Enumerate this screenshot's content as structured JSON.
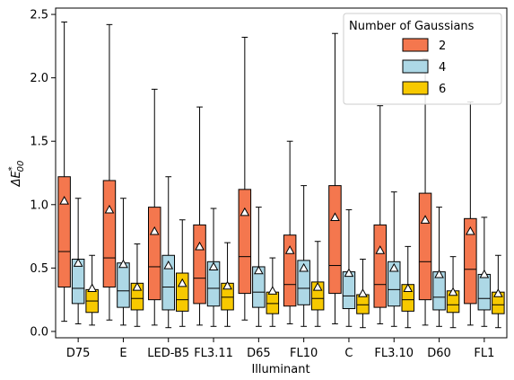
{
  "chart_data": {
    "type": "box",
    "xlabel": "Illuminant",
    "ylabel": "ΔE*00",
    "ylim": [
      -0.05,
      2.55
    ],
    "yticks": [
      0.0,
      0.5,
      1.0,
      1.5,
      2.0,
      2.5
    ],
    "ytick_labels": [
      "0.0",
      "0.5",
      "1.0",
      "1.5",
      "2.0",
      "2.5"
    ],
    "grid": false,
    "categories": [
      "D75",
      "E",
      "LED-B5",
      "FL3.11",
      "D65",
      "FL10",
      "C",
      "FL3.10",
      "D60",
      "FL1"
    ],
    "legend": {
      "title": "Number of Gaussians",
      "placement": "top-right"
    },
    "series": [
      {
        "name": "2",
        "color": "#f4774e",
        "boxes": [
          {
            "whislo": 0.08,
            "q1": 0.35,
            "med": 0.63,
            "q3": 1.22,
            "whishi": 2.44,
            "mean": 1.03
          },
          {
            "whislo": 0.09,
            "q1": 0.35,
            "med": 0.58,
            "q3": 1.19,
            "whishi": 2.42,
            "mean": 0.96
          },
          {
            "whislo": 0.05,
            "q1": 0.25,
            "med": 0.51,
            "q3": 0.98,
            "whishi": 1.91,
            "mean": 0.79
          },
          {
            "whislo": 0.05,
            "q1": 0.22,
            "med": 0.42,
            "q3": 0.84,
            "whishi": 1.77,
            "mean": 0.67
          },
          {
            "whislo": 0.09,
            "q1": 0.3,
            "med": 0.59,
            "q3": 1.12,
            "whishi": 2.32,
            "mean": 0.94
          },
          {
            "whislo": 0.06,
            "q1": 0.2,
            "med": 0.37,
            "q3": 0.76,
            "whishi": 1.5,
            "mean": 0.64
          },
          {
            "whislo": 0.06,
            "q1": 0.3,
            "med": 0.52,
            "q3": 1.15,
            "whishi": 2.35,
            "mean": 0.9
          },
          {
            "whislo": 0.06,
            "q1": 0.19,
            "med": 0.37,
            "q3": 0.84,
            "whishi": 1.78,
            "mean": 0.64
          },
          {
            "whislo": 0.05,
            "q1": 0.25,
            "med": 0.55,
            "q3": 1.09,
            "whishi": 2.15,
            "mean": 0.88
          },
          {
            "whislo": 0.05,
            "q1": 0.22,
            "med": 0.49,
            "q3": 0.89,
            "whishi": 1.81,
            "mean": 0.79
          }
        ]
      },
      {
        "name": "4",
        "color": "#add8e6",
        "boxes": [
          {
            "whislo": 0.06,
            "q1": 0.22,
            "med": 0.34,
            "q3": 0.57,
            "whishi": 1.05,
            "mean": 0.54
          },
          {
            "whislo": 0.05,
            "q1": 0.19,
            "med": 0.32,
            "q3": 0.54,
            "whishi": 1.05,
            "mean": 0.53
          },
          {
            "whislo": 0.03,
            "q1": 0.17,
            "med": 0.35,
            "q3": 0.6,
            "whishi": 1.22,
            "mean": 0.52
          },
          {
            "whislo": 0.04,
            "q1": 0.2,
            "med": 0.34,
            "q3": 0.55,
            "whishi": 0.97,
            "mean": 0.51
          },
          {
            "whislo": 0.04,
            "q1": 0.19,
            "med": 0.31,
            "q3": 0.51,
            "whishi": 0.98,
            "mean": 0.48
          },
          {
            "whislo": 0.04,
            "q1": 0.21,
            "med": 0.34,
            "q3": 0.56,
            "whishi": 1.15,
            "mean": 0.5
          },
          {
            "whislo": 0.04,
            "q1": 0.18,
            "med": 0.28,
            "q3": 0.47,
            "whishi": 0.96,
            "mean": 0.46
          },
          {
            "whislo": 0.04,
            "q1": 0.2,
            "med": 0.33,
            "q3": 0.55,
            "whishi": 1.1,
            "mean": 0.5
          },
          {
            "whislo": 0.04,
            "q1": 0.17,
            "med": 0.27,
            "q3": 0.47,
            "whishi": 0.98,
            "mean": 0.45
          },
          {
            "whislo": 0.04,
            "q1": 0.17,
            "med": 0.26,
            "q3": 0.45,
            "whishi": 0.9,
            "mean": 0.45
          }
        ]
      },
      {
        "name": "6",
        "color": "#f7c900",
        "boxes": [
          {
            "whislo": 0.05,
            "q1": 0.15,
            "med": 0.24,
            "q3": 0.33,
            "whishi": 0.6,
            "mean": 0.34
          },
          {
            "whislo": 0.04,
            "q1": 0.17,
            "med": 0.26,
            "q3": 0.38,
            "whishi": 0.69,
            "mean": 0.35
          },
          {
            "whislo": 0.04,
            "q1": 0.16,
            "med": 0.25,
            "q3": 0.46,
            "whishi": 0.88,
            "mean": 0.38
          },
          {
            "whislo": 0.04,
            "q1": 0.17,
            "med": 0.27,
            "q3": 0.38,
            "whishi": 0.7,
            "mean": 0.36
          },
          {
            "whislo": 0.04,
            "q1": 0.14,
            "med": 0.22,
            "q3": 0.31,
            "whishi": 0.58,
            "mean": 0.32
          },
          {
            "whislo": 0.04,
            "q1": 0.17,
            "med": 0.26,
            "q3": 0.39,
            "whishi": 0.71,
            "mean": 0.35
          },
          {
            "whislo": 0.03,
            "q1": 0.14,
            "med": 0.21,
            "q3": 0.29,
            "whishi": 0.57,
            "mean": 0.3
          },
          {
            "whislo": 0.03,
            "q1": 0.16,
            "med": 0.25,
            "q3": 0.37,
            "whishi": 0.67,
            "mean": 0.34
          },
          {
            "whislo": 0.03,
            "q1": 0.15,
            "med": 0.21,
            "q3": 0.32,
            "whishi": 0.59,
            "mean": 0.31
          },
          {
            "whislo": 0.03,
            "q1": 0.14,
            "med": 0.21,
            "q3": 0.31,
            "whishi": 0.6,
            "mean": 0.3
          }
        ]
      }
    ]
  }
}
